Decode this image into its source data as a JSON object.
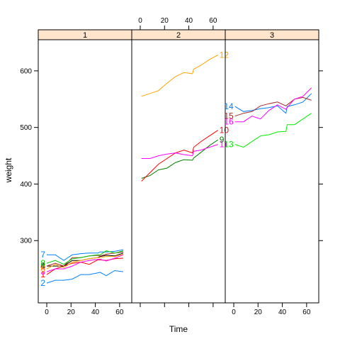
{
  "chart_data": {
    "type": "line",
    "xlabel": "Time",
    "ylabel": "weight",
    "xlim": [
      -7,
      70
    ],
    "ylim": [
      190,
      655
    ],
    "x_ticks": [
      0,
      20,
      40,
      60
    ],
    "y_ticks": [
      300,
      400,
      500,
      600
    ],
    "strip_color": "#ffe5cc",
    "panels": [
      {
        "label": "1",
        "series": [
          {
            "name": "1",
            "color": "#ff0000",
            "x": [
              0,
              7,
              14,
              21,
              28,
              35,
              42,
              44,
              49,
              56,
              63
            ],
            "values": [
              240,
              250,
              255,
              260,
              262,
              258,
              266,
              266,
              265,
              268,
              269
            ]
          },
          {
            "name": "2",
            "color": "#0080ff",
            "x": [
              0,
              7,
              14,
              21,
              28,
              35,
              42,
              44,
              49,
              56,
              63
            ],
            "values": [
              225,
              230,
              230,
              232,
              240,
              240,
              243,
              244,
              238,
              247,
              245
            ]
          },
          {
            "name": "3",
            "color": "#ff00ff",
            "x": [
              0,
              7,
              14,
              21,
              28,
              35,
              42,
              44,
              49,
              56,
              63
            ],
            "values": [
              245,
              250,
              250,
              255,
              262,
              265,
              267,
              267,
              264,
              269,
              275
            ]
          },
          {
            "name": "4",
            "color": "#000000",
            "x": [
              0,
              7,
              14,
              21,
              28,
              35,
              42,
              44,
              49,
              56,
              63
            ],
            "values": [
              255,
              255,
              255,
              265,
              265,
              268,
              270,
              272,
              274,
              273,
              278
            ]
          },
          {
            "name": "5",
            "color": "#a52a2a",
            "x": [
              0,
              7,
              14,
              21,
              28,
              35,
              42,
              44,
              49,
              56,
              63
            ],
            "values": [
              255,
              260,
              255,
              270,
              270,
              273,
              274,
              273,
              276,
              278,
              280
            ]
          },
          {
            "name": "6",
            "color": "#ffa500",
            "x": [
              0,
              7,
              14,
              21,
              28,
              35,
              42,
              44,
              49,
              56,
              63
            ],
            "values": [
              250,
              258,
              252,
              262,
              265,
              268,
              270,
              270,
              272,
              272,
              276
            ]
          },
          {
            "name": "7",
            "color": "#0080ff",
            "x": [
              0,
              7,
              14,
              21,
              28,
              35,
              42,
              44,
              49,
              56,
              63
            ],
            "values": [
              275,
              275,
              265,
              275,
              277,
              278,
              278,
              280,
              280,
              281,
              284
            ]
          },
          {
            "name": "8",
            "color": "#00cc00",
            "x": [
              0,
              7,
              14,
              21,
              28,
              35,
              42,
              44,
              49,
              56,
              63
            ],
            "values": [
              260,
              265,
              258,
              268,
              270,
              273,
              275,
              275,
              282,
              278,
              282
            ]
          }
        ]
      },
      {
        "label": "2",
        "series": [
          {
            "name": "9",
            "color": "#008000",
            "x": [
              1,
              8,
              15,
              22,
              29,
              36,
              43,
              44,
              50,
              57,
              64
            ],
            "values": [
              410,
              415,
              425,
              428,
              438,
              443,
              442,
              446,
              456,
              468,
              478
            ]
          },
          {
            "name": "10",
            "color": "#ff0000",
            "x": [
              1,
              8,
              15,
              22,
              29,
              36,
              43,
              44,
              50,
              57,
              64
            ],
            "values": [
              405,
              420,
              435,
              445,
              455,
              460,
              455,
              465,
              475,
              485,
              495
            ]
          },
          {
            "name": "11",
            "color": "#ff00ff",
            "x": [
              1,
              8,
              15,
              22,
              29,
              36,
              43,
              44,
              50,
              57,
              64
            ],
            "values": [
              445,
              445,
              450,
              453,
              455,
              452,
              450,
              458,
              460,
              465,
              470
            ]
          },
          {
            "name": "12",
            "color": "#ffa500",
            "x": [
              1,
              8,
              15,
              22,
              29,
              36,
              43,
              44,
              50,
              57,
              64
            ],
            "values": [
              555,
              560,
              565,
              578,
              590,
              597,
              595,
              603,
              610,
              620,
              628
            ]
          }
        ]
      },
      {
        "label": "3",
        "series": [
          {
            "name": "13",
            "color": "#00ee00",
            "x": [
              1,
              8,
              15,
              22,
              29,
              36,
              43,
              44,
              50,
              57,
              64
            ],
            "values": [
              470,
              465,
              475,
              485,
              487,
              492,
              493,
              505,
              505,
              515,
              525
            ]
          },
          {
            "name": "14",
            "color": "#0080ff",
            "x": [
              1,
              8,
              15,
              22,
              29,
              36,
              43,
              44,
              50,
              57,
              64
            ],
            "values": [
              537,
              528,
              530,
              533,
              535,
              538,
              525,
              537,
              540,
              545,
              560
            ]
          },
          {
            "name": "15",
            "color": "#a52a2a",
            "x": [
              1,
              8,
              15,
              22,
              29,
              36,
              43,
              44,
              50,
              57,
              64
            ],
            "values": [
              520,
              525,
              528,
              538,
              542,
              545,
              538,
              540,
              550,
              553,
              548
            ]
          },
          {
            "name": "16",
            "color": "#ff00ff",
            "x": [
              1,
              8,
              15,
              22,
              29,
              36,
              43,
              44,
              50,
              57,
              64
            ],
            "values": [
              510,
              510,
              520,
              515,
              530,
              540,
              532,
              535,
              550,
              555,
              570
            ]
          }
        ]
      }
    ]
  }
}
